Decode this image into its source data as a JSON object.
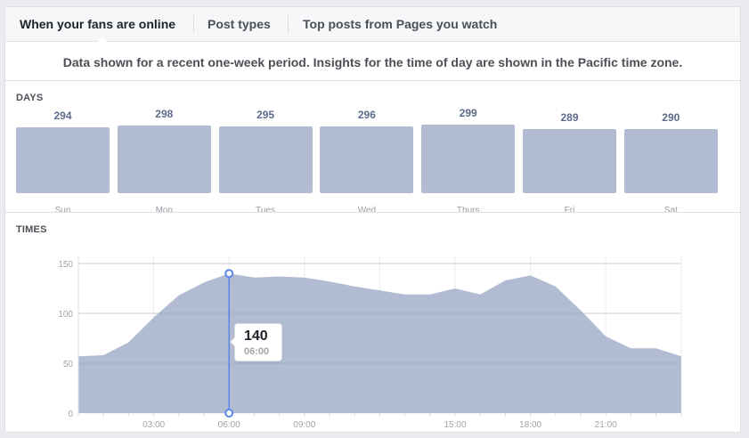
{
  "tabs": [
    {
      "label": "When your fans are online",
      "active": true
    },
    {
      "label": "Post types",
      "active": false
    },
    {
      "label": "Top posts from Pages you watch",
      "active": false
    }
  ],
  "notice": "Data shown for a recent one-week period. Insights for the time of day are shown in the Pacific time zone.",
  "days_section": {
    "label": "DAYS",
    "days": [
      {
        "label": "Sun",
        "value": "294"
      },
      {
        "label": "Mon",
        "value": "298"
      },
      {
        "label": "Tues",
        "value": "295"
      },
      {
        "label": "Wed",
        "value": "296"
      },
      {
        "label": "Thurs",
        "value": "299"
      },
      {
        "label": "Fri",
        "value": "289"
      },
      {
        "label": "Sat",
        "value": "290"
      }
    ]
  },
  "times_section": {
    "label": "TIMES",
    "tooltip": {
      "value": "140",
      "time": "06:00"
    }
  },
  "colors": {
    "bar_fill": "#b1bbd2",
    "area_fill": "#b1bbd2",
    "cursor_line": "#5b86e5",
    "value_text": "#5d6b8a"
  },
  "chart_data": [
    {
      "type": "bar",
      "title": "DAYS",
      "categories": [
        "Sun",
        "Mon",
        "Tues",
        "Wed",
        "Thurs",
        "Fri",
        "Sat"
      ],
      "values": [
        294,
        298,
        295,
        296,
        299,
        289,
        290
      ],
      "xlabel": "",
      "ylabel": "",
      "grid": false,
      "legend": null
    },
    {
      "type": "area",
      "title": "TIMES",
      "x": [
        0,
        1,
        2,
        3,
        4,
        5,
        6,
        7,
        8,
        9,
        10,
        11,
        12,
        13,
        14,
        15,
        16,
        17,
        18,
        19,
        20,
        21,
        22,
        23,
        24
      ],
      "values": [
        57,
        58,
        71,
        96,
        118,
        131,
        140,
        136,
        137,
        136,
        132,
        127,
        123,
        119,
        119,
        125,
        119,
        133,
        138,
        127,
        103,
        77,
        65,
        65,
        57
      ],
      "x_tick_labels": [
        "03:00",
        "06:00",
        "09:00",
        "15:00",
        "18:00",
        "21:00"
      ],
      "x_tick_hours": [
        3,
        6,
        9,
        15,
        18,
        21
      ],
      "y_ticks": [
        0,
        50,
        100,
        150
      ],
      "ylim": [
        0,
        150
      ],
      "xlabel": "",
      "ylabel": "",
      "grid": true,
      "highlight": {
        "x": 6,
        "value": 140,
        "label": "06:00"
      }
    }
  ]
}
